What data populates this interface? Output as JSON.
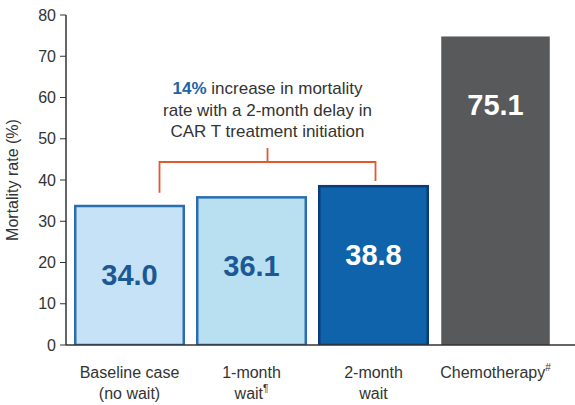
{
  "chart_data": {
    "type": "bar",
    "y_label": "Mortality rate (%)",
    "categories": [
      "Baseline case\n(no wait)",
      "1-month\nwait¶",
      "2-month\nwait",
      "Chemotherapy#"
    ],
    "values": [
      34.0,
      36.1,
      38.8,
      75.1
    ],
    "value_labels": [
      "34.0",
      "36.1",
      "38.8",
      "75.1"
    ],
    "colors": [
      "#c6e2f6",
      "#b9e0f1",
      "#0e63aa",
      "#58595b"
    ],
    "ylim": [
      0,
      80
    ],
    "yticks": [
      0,
      10,
      20,
      30,
      40,
      50,
      60,
      70,
      80
    ],
    "grid": false,
    "data_labels": true,
    "annotation": "14% increase in mortality\nrate with a 2-month delay in\nCAR T treatment initiation"
  }
}
